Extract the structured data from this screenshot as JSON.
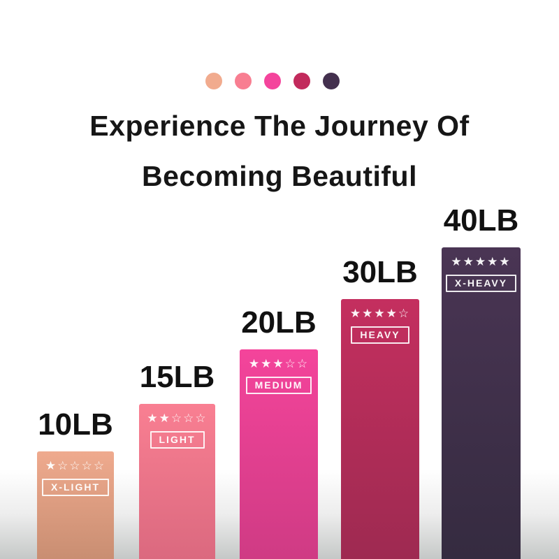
{
  "header": {
    "title_line1": "Experience The Journey Of",
    "title_line2": "Becoming Beautiful"
  },
  "palette_dots": [
    {
      "name": "x-light-dot",
      "color": "#f1ab8e"
    },
    {
      "name": "light-dot",
      "color": "#f87e91"
    },
    {
      "name": "medium-dot",
      "color": "#f4449c"
    },
    {
      "name": "heavy-dot",
      "color": "#c22a5c"
    },
    {
      "name": "x-heavy-dot",
      "color": "#43304e"
    }
  ],
  "chart_data": {
    "type": "bar",
    "title": "Experience The Journey Of Becoming Beautiful",
    "categories": [
      "10LB",
      "15LB",
      "20LB",
      "30LB",
      "40LB"
    ],
    "values": [
      10,
      15,
      20,
      30,
      40
    ],
    "unit": "LB",
    "ylabel": "",
    "xlabel": "",
    "legend_position": "none",
    "grid": false,
    "bars": [
      {
        "id": "x-light",
        "weight_label": "10LB",
        "value": 10,
        "rating": 1,
        "rating_max": 5,
        "stars_display": "★☆☆☆☆",
        "band_label": "X-LIGHT",
        "color_top": "#efaa8e",
        "color_bottom": "#c98e72"
      },
      {
        "id": "light",
        "weight_label": "15LB",
        "value": 15,
        "rating": 2,
        "rating_max": 5,
        "stars_display": "★★☆☆☆",
        "band_label": "LIGHT",
        "color_top": "#f97f92",
        "color_bottom": "#db697f"
      },
      {
        "id": "medium",
        "weight_label": "20LB",
        "value": 20,
        "rating": 3,
        "rating_max": 5,
        "stars_display": "★★★☆☆",
        "band_label": "MEDIUM",
        "color_top": "#f4449b",
        "color_bottom": "#cf3b84"
      },
      {
        "id": "heavy",
        "weight_label": "30LB",
        "value": 30,
        "rating": 4,
        "rating_max": 5,
        "stars_display": "★★★★☆",
        "band_label": "HEAVY",
        "color_top": "#c42f5f",
        "color_bottom": "#9e2a51"
      },
      {
        "id": "x-heavy",
        "weight_label": "40LB",
        "value": 40,
        "rating": 5,
        "rating_max": 5,
        "stars_display": "★★★★★",
        "band_label": "X-HEAVY",
        "color_top": "#4a3554",
        "color_bottom": "#352b40"
      }
    ]
  }
}
